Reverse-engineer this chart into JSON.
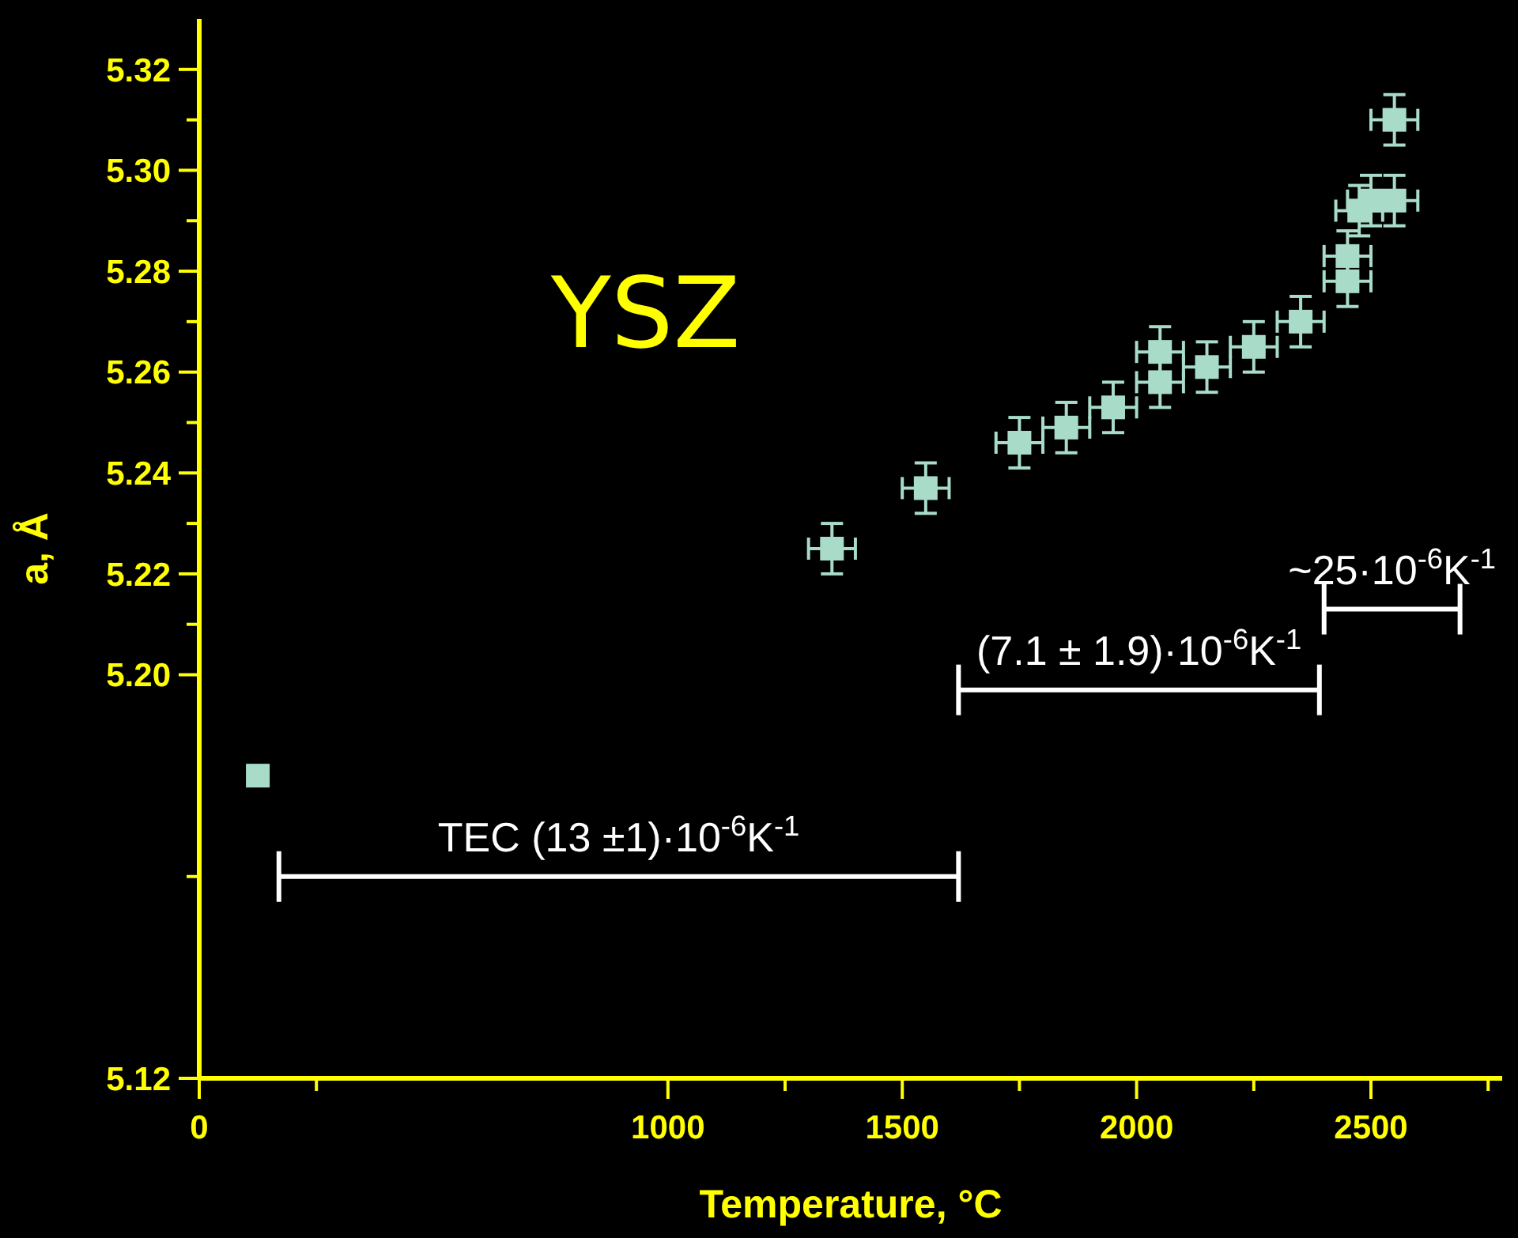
{
  "chart_data": {
    "type": "scatter",
    "xlabel": "Temperature, °C",
    "ylabel": "a, Å",
    "series": [
      {
        "color": "#a8dcc8",
        "marker": "square",
        "x": [
          125,
          1350,
          1550,
          1750,
          1850,
          1950,
          2050,
          2050,
          2150,
          2250,
          2350,
          2450,
          2450,
          2475,
          2500,
          2550,
          2550
        ],
        "values": [
          5.18,
          5.225,
          5.237,
          5.246,
          5.249,
          5.253,
          5.264,
          5.258,
          5.261,
          5.265,
          5.27,
          5.283,
          5.278,
          5.292,
          5.294,
          5.294,
          5.31
        ],
        "errors": [
          null,
          0.005,
          0.005,
          0.005,
          0.005,
          0.005,
          0.005,
          0.005,
          0.005,
          0.005,
          0.005,
          0.005,
          0.005,
          0.005,
          0.005,
          0.005,
          0.005
        ],
        "xerrors": [
          null,
          50,
          50,
          50,
          50,
          50,
          50,
          50,
          50,
          50,
          50,
          50,
          50,
          50,
          50,
          50,
          50
        ]
      },
      {
        "type": "line",
        "color": "#ffffff",
        "marker": "none",
        "x": [
          170,
          1620
        ],
        "values": [
          5.16,
          5.16
        ]
      },
      {
        "type": "line",
        "color": "#ffffff",
        "marker": "none",
        "x": [
          1620,
          2390
        ],
        "values": [
          5.197,
          5.197
        ]
      },
      {
        "type": "line",
        "color": "#ffffff",
        "marker": "none",
        "x": [
          2400,
          2690
        ],
        "values": [
          5.213,
          5.213
        ]
      }
    ],
    "xlim": [
      0,
      2780
    ],
    "ylim": [
      5.12,
      5.33
    ],
    "xticks": [
      0,
      {
        "value": 250,
        "label": null
      },
      1000,
      {
        "value": 1250,
        "label": null
      },
      1500,
      {
        "value": 1750,
        "label": null
      },
      2000,
      {
        "value": 2250,
        "label": null
      },
      2500,
      {
        "value": 2750,
        "label": null
      }
    ],
    "yticks": [
      5.12,
      {
        "value": 5.16,
        "label": null
      },
      {
        "value": 5.2,
        "label": "5.20"
      },
      {
        "value": 5.21,
        "label": null
      },
      5.22,
      {
        "value": 5.23,
        "label": null
      },
      5.24,
      {
        "value": 5.25,
        "label": null
      },
      5.26,
      {
        "value": 5.27,
        "label": null
      },
      5.28,
      {
        "value": 5.29,
        "label": null
      },
      {
        "value": 5.3,
        "label": "5.30"
      },
      {
        "value": 5.31,
        "label": null
      },
      5.32
    ],
    "annotations": [
      "YSZ",
      "TEC (13 ±1)·10$^{-6}$K$^{-1}$",
      "(7.1 ± 1.9)·10$^{-6}$K$^{-1}$",
      "~25·10$^{-6}$K$^{-1}$"
    ],
    "grid": false,
    "legend": false
  }
}
